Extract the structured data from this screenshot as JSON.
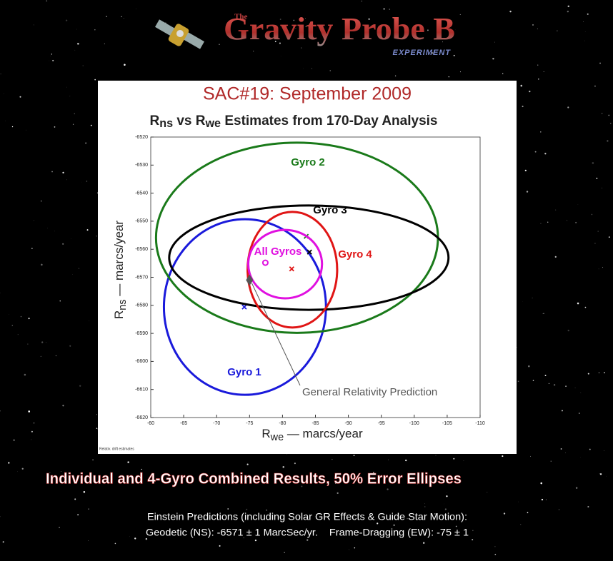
{
  "logo": {
    "the": "The",
    "name": "Gravity Probe B",
    "experiment": "EXPERIMENT"
  },
  "heading": "SAC#19: September 2009",
  "chart_data": {
    "type": "ellipse",
    "title_parts": [
      "R",
      "ns",
      " vs R",
      "we",
      " Estimates from 170-Day Analysis"
    ],
    "xlabel_parts": [
      "R",
      "we",
      " — marcs/year"
    ],
    "ylabel_parts": [
      "R",
      "ns",
      " — marcs/year"
    ],
    "xlim": [
      -60,
      -110
    ],
    "xticks": [
      -60,
      -65,
      -70,
      -75,
      -80,
      -85,
      -90,
      -95,
      -100,
      -105,
      -110
    ],
    "ylim": [
      -6620,
      -6520
    ],
    "yticks": [
      -6520,
      -6530,
      -6540,
      -6550,
      -6560,
      -6570,
      -6580,
      -6590,
      -6600,
      -6610,
      -6620
    ],
    "series": [
      {
        "name": "Gyro 1",
        "color": "#1a1adb",
        "x": -74.3,
        "y": -6580.6,
        "x_radius": 12.3,
        "y_radius": 31.3,
        "estimate_x": -74.2,
        "estimate_y": -6580.6
      },
      {
        "name": "Gyro 2",
        "color": "#1a7a1a",
        "x": -82.2,
        "y": -6555.9,
        "x_radius": 21.4,
        "y_radius": 33.9,
        "estimate_x": -83.6,
        "estimate_y": -6555.4
      },
      {
        "name": "Gyro 3",
        "color": "#000000",
        "x": -84.0,
        "y": -6563.0,
        "x_radius": 21.2,
        "y_radius": 18.6,
        "estimate_x": -84.1,
        "estimate_y": -6561.0
      },
      {
        "name": "Gyro 4",
        "color": "#e01515",
        "x": -81.5,
        "y": -6567.3,
        "x_radius": 6.8,
        "y_radius": 20.6,
        "estimate_x": -81.4,
        "estimate_y": -6567.0
      },
      {
        "name": "All Gyros",
        "color": "#e010e0",
        "x": -80.4,
        "y": -6565.3,
        "x_radius": 5.6,
        "y_radius": 12.2,
        "estimate_x": -77.4,
        "estimate_y": -6564.8
      }
    ],
    "prediction": {
      "label": "General Relativity Prediction",
      "x": -75,
      "y": -6571
    },
    "footnote": "Relativ. drift estimates"
  },
  "caption": "Individual and 4-Gyro  Combined Results, 50% Error Ellipses",
  "notes": [
    "Einstein Predictions (including Solar GR Effects & Guide Star Motion):",
    "Geodetic (NS): -6571 ± 1 MarcSec/yr.    Frame-Dragging (EW): -75 ± 1"
  ]
}
